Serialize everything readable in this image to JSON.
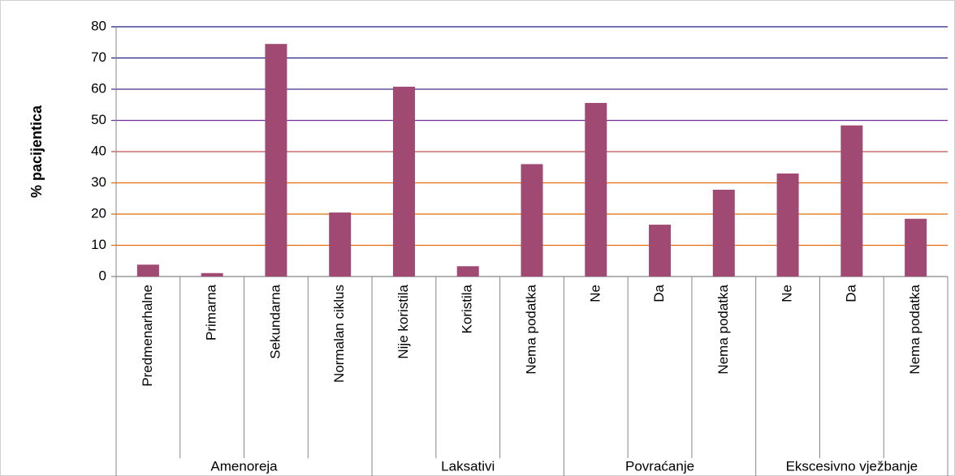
{
  "chart_data": {
    "type": "bar",
    "y_label": "% pacijentica",
    "color": "#a04a73",
    "ylim": [
      0,
      80
    ],
    "yticks": [
      0,
      10,
      20,
      30,
      40,
      50,
      60,
      70,
      80
    ],
    "grid": true,
    "grid_colors": [
      "#868686",
      "#e46c0a",
      "#e46c0a",
      "#e46c0a",
      "#c0504d",
      "#7030a0",
      "#4b2a90",
      "#1f1f80",
      "#1f1f80"
    ],
    "groups": [
      {
        "name": "Amenoreja",
        "categories": [
          "Predmenarhalne",
          "Primarna",
          "Sekundarna",
          "Normalan ciklus"
        ],
        "values": [
          3.8,
          1.1,
          74.5,
          20.5
        ]
      },
      {
        "name": "Laksativi",
        "categories": [
          "Nije koristila",
          "Koristila",
          "Nema podatka"
        ],
        "values": [
          60.8,
          3.3,
          36
        ]
      },
      {
        "name": "Povraćanje",
        "categories": [
          "Ne",
          "Da",
          "Nema podatka"
        ],
        "values": [
          55.6,
          16.6,
          27.8
        ]
      },
      {
        "name": "Ekscesivno vježbanje",
        "categories": [
          "Ne",
          "Da",
          "Nema podatka"
        ],
        "values": [
          33,
          48.4,
          18.5
        ]
      }
    ]
  }
}
